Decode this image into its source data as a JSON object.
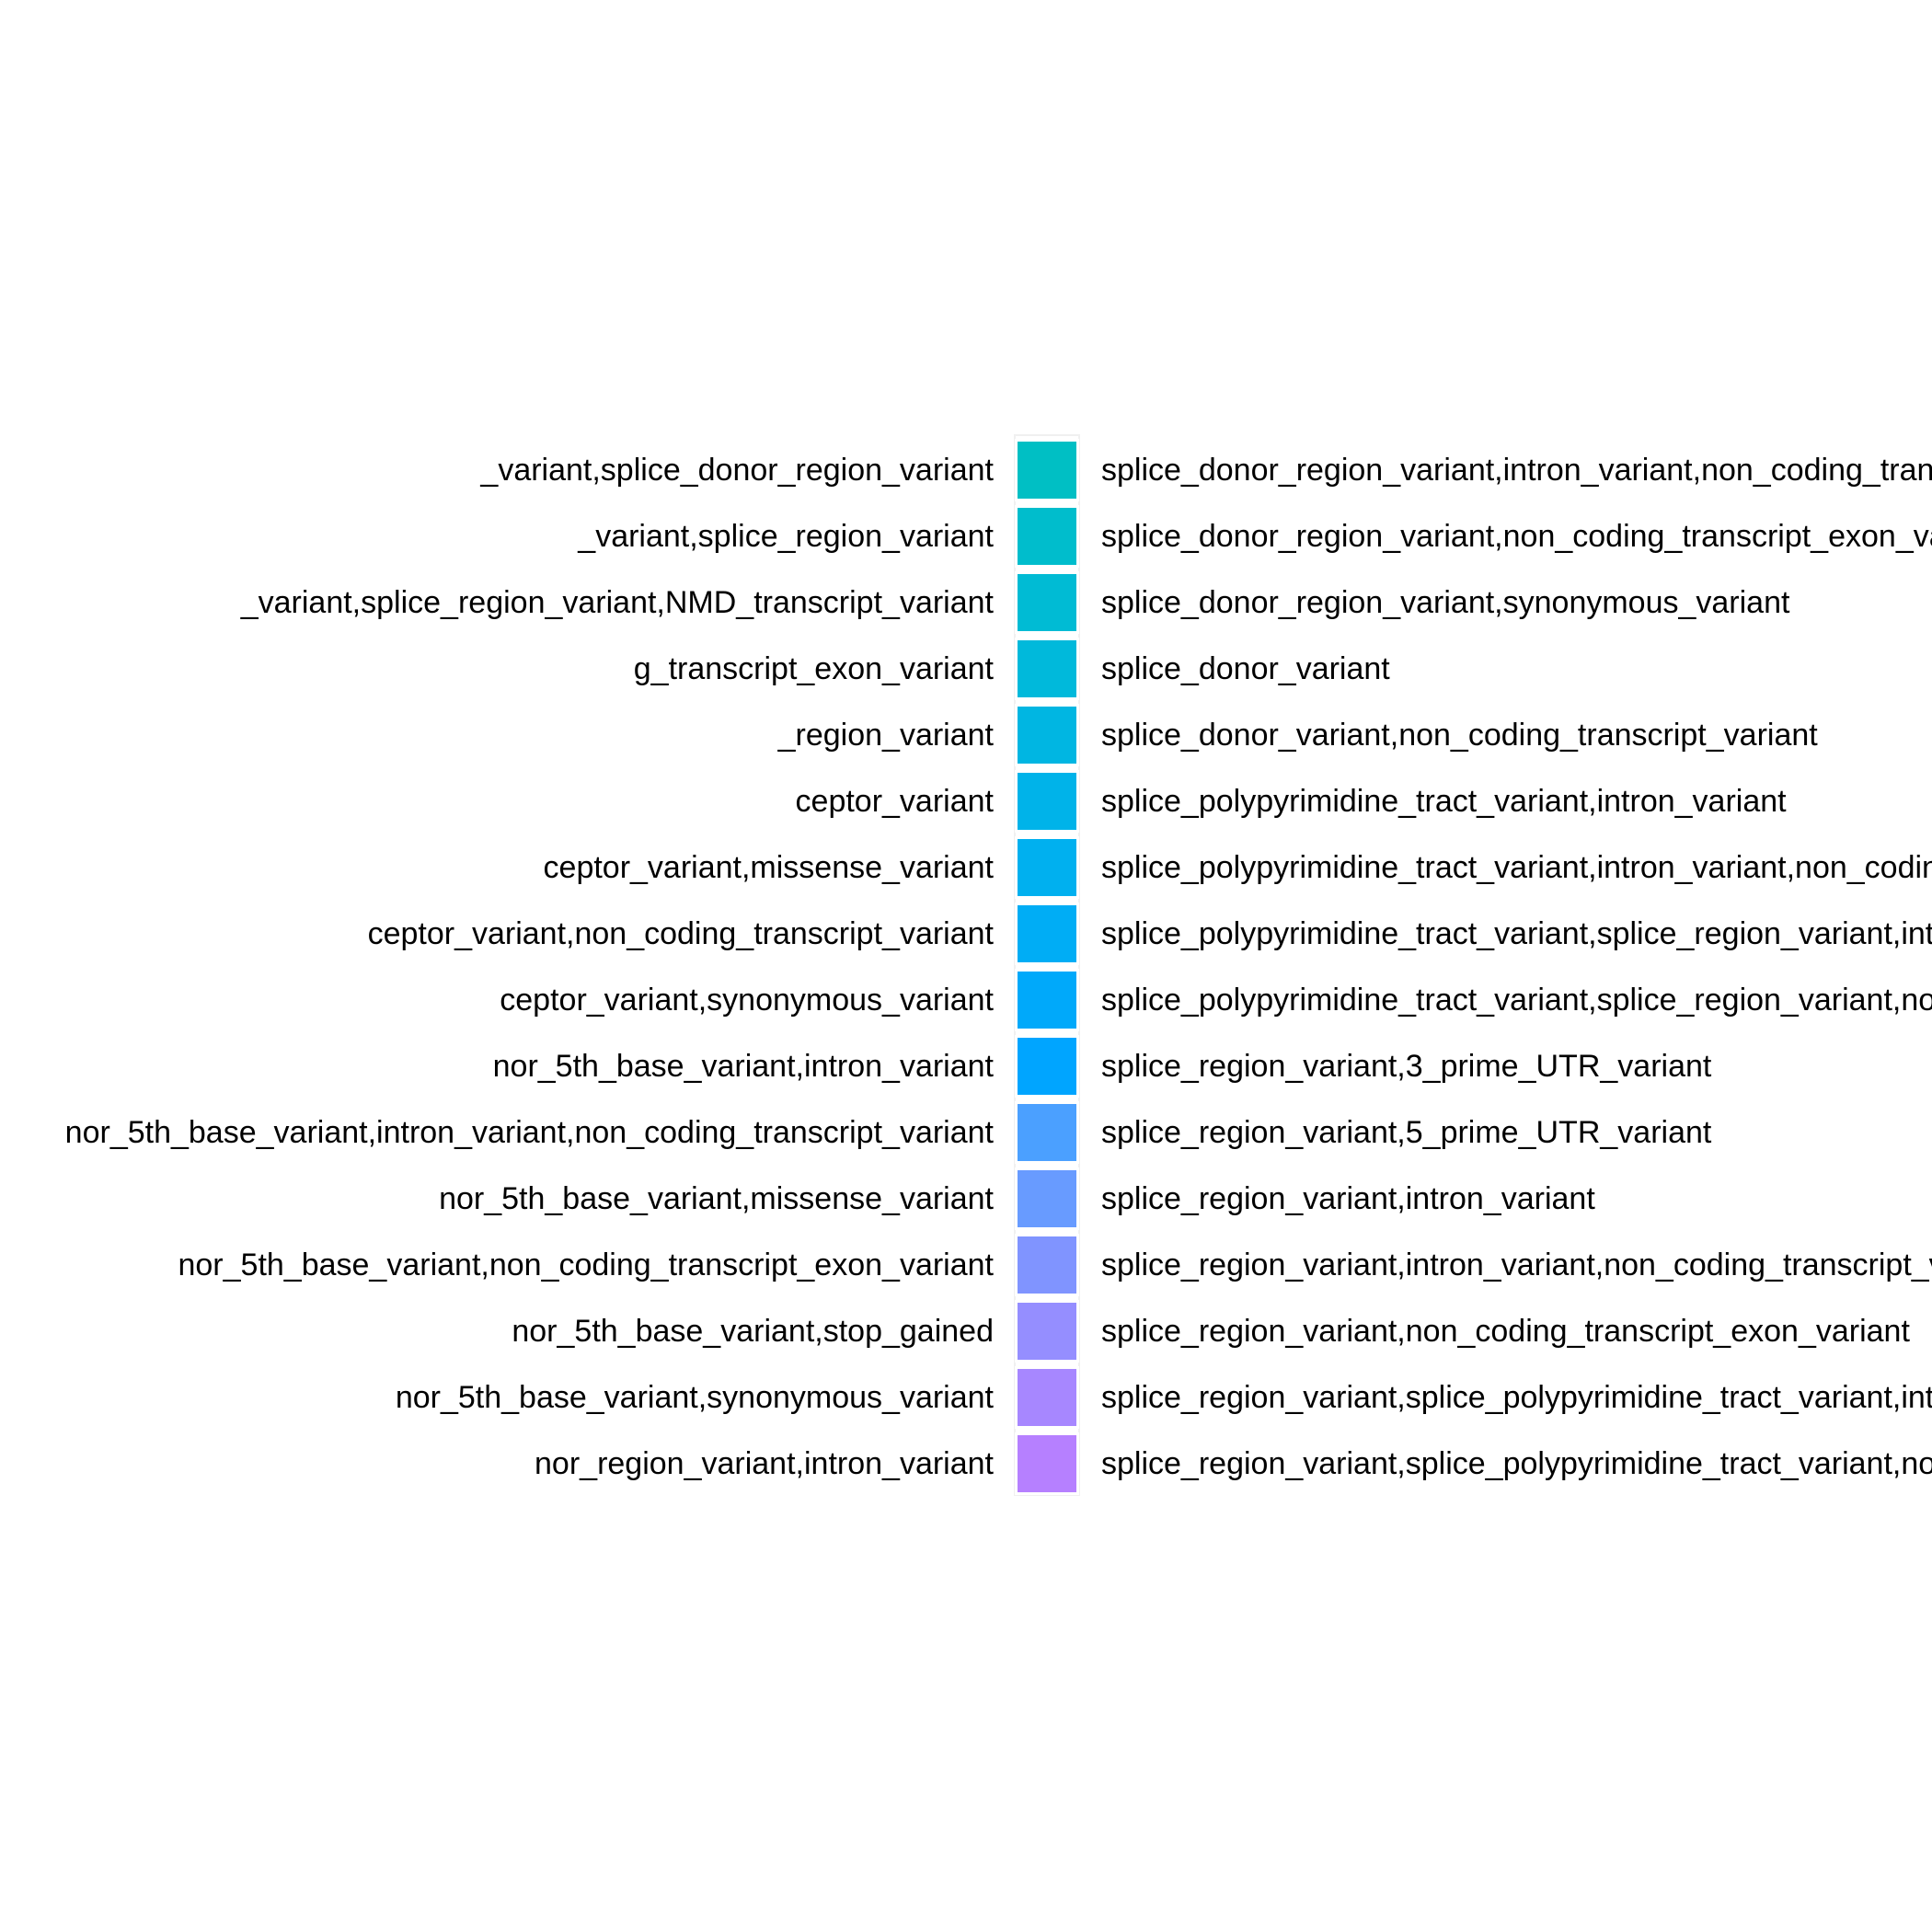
{
  "chart_data": {
    "type": "legend",
    "title": "",
    "left_column_labels": [
      "_variant,splice_donor_region_variant",
      "_variant,splice_region_variant",
      "_variant,splice_region_variant,NMD_transcript_variant",
      "g_transcript_exon_variant",
      "_region_variant",
      "ceptor_variant",
      "ceptor_variant,missense_variant",
      "ceptor_variant,non_coding_transcript_variant",
      "ceptor_variant,synonymous_variant",
      "nor_5th_base_variant,intron_variant",
      "nor_5th_base_variant,intron_variant,non_coding_transcript_variant",
      "nor_5th_base_variant,missense_variant",
      "nor_5th_base_variant,non_coding_transcript_exon_variant",
      "nor_5th_base_variant,stop_gained",
      "nor_5th_base_variant,synonymous_variant",
      "nor_region_variant,intron_variant"
    ],
    "right_column_entries": [
      {
        "label": "splice_donor_region_variant,intron_variant,non_coding_transcript_variant",
        "color": "#00BFC4"
      },
      {
        "label": "splice_donor_region_variant,non_coding_transcript_exon_variant",
        "color": "#00BDCC"
      },
      {
        "label": "splice_donor_region_variant,synonymous_variant",
        "color": "#00BBD4"
      },
      {
        "label": "splice_donor_variant",
        "color": "#00B9DB"
      },
      {
        "label": "splice_donor_variant,non_coding_transcript_variant",
        "color": "#00B6E2"
      },
      {
        "label": "splice_polypyrimidine_tract_variant,intron_variant",
        "color": "#00B3E9"
      },
      {
        "label": "splice_polypyrimidine_tract_variant,intron_variant,non_coding_transcript_variant",
        "color": "#00B0EF"
      },
      {
        "label": "splice_polypyrimidine_tract_variant,splice_region_variant,intron_variant",
        "color": "#00ADF5"
      },
      {
        "label": "splice_polypyrimidine_tract_variant,splice_region_variant,non_coding_transcript_variant",
        "color": "#00A9FA"
      },
      {
        "label": "splice_region_variant,3_prime_UTR_variant",
        "color": "#00A5FF"
      },
      {
        "label": "splice_region_variant,5_prime_UTR_variant",
        "color": "#4BA0FF"
      },
      {
        "label": "splice_region_variant,intron_variant",
        "color": "#689BFF"
      },
      {
        "label": "splice_region_variant,intron_variant,non_coding_transcript_variant",
        "color": "#8094FF"
      },
      {
        "label": "splice_region_variant,non_coding_transcript_exon_variant",
        "color": "#958EFF"
      },
      {
        "label": "splice_region_variant,splice_polypyrimidine_tract_variant,intron_variant",
        "color": "#A787FF"
      },
      {
        "label": "splice_region_variant,splice_polypyrimidine_tract_variant,non_coding_transcript_variant",
        "color": "#B680FF"
      }
    ]
  }
}
